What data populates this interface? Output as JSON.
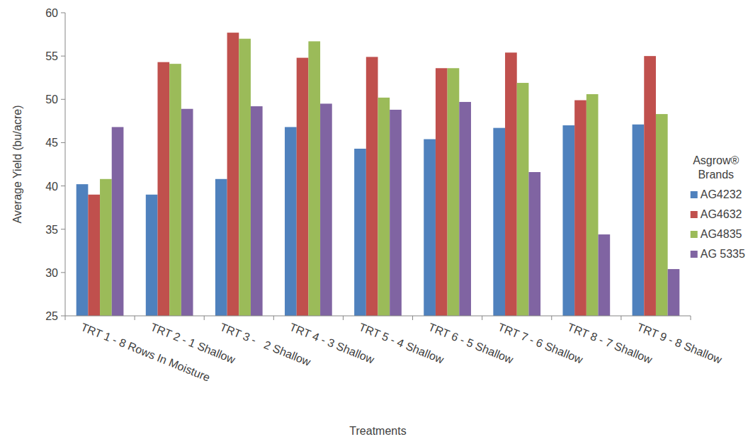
{
  "chart_data": {
    "type": "bar",
    "x_label": "Treatments",
    "y_label": "Average Yield (bu/acre)",
    "legend_title": "Asgrow® Brands",
    "categories": [
      "TRT 1 - 8 Rows In Moisture",
      "TRT 2 - 1 Shallow",
      "TRT 3 -   2 Shallow",
      "TRT 4 - 3 Shallow",
      "TRT 5 - 4 Shallow",
      "TRT 6 - 5 Shallow",
      "TRT 7 - 6 Shallow",
      "TRT 8 - 7 Shallow",
      "TRT 9 - 8 Shallow"
    ],
    "series": [
      {
        "name": "AG4232",
        "color": "#4f81bd",
        "values": [
          40.2,
          39.0,
          40.8,
          46.8,
          44.3,
          45.4,
          46.7,
          47.0,
          47.1
        ]
      },
      {
        "name": "AG4632",
        "color": "#c0504d",
        "values": [
          39.0,
          54.3,
          57.7,
          54.8,
          54.9,
          53.6,
          55.4,
          49.9,
          55.0
        ]
      },
      {
        "name": "AG4835",
        "color": "#9bbb59",
        "values": [
          40.8,
          54.1,
          57.0,
          56.7,
          50.2,
          53.6,
          51.9,
          50.6,
          48.3
        ]
      },
      {
        "name": "AG 5335",
        "color": "#8064a2",
        "values": [
          46.8,
          48.9,
          49.2,
          49.5,
          48.8,
          49.7,
          41.6,
          34.4,
          30.4
        ]
      }
    ],
    "ylim": [
      25,
      60
    ],
    "yticks": [
      25,
      30,
      35,
      40,
      45,
      50,
      55,
      60
    ],
    "grid": false,
    "legend": "right"
  }
}
